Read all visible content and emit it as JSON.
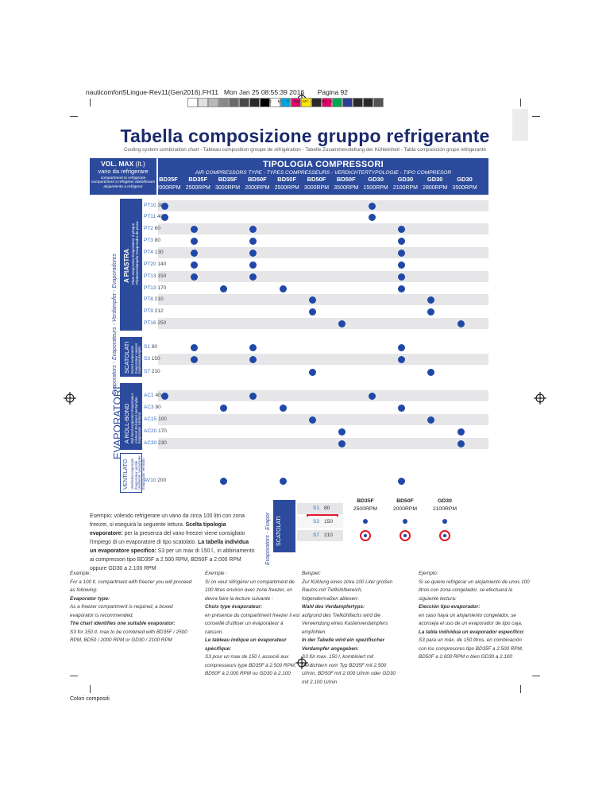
{
  "slug": {
    "file": "nauticomfort5Lingue-Rev11(Gen2016).FH11",
    "date": "Mon Jan 25 08:55:39 2016",
    "page": "Pagina 92"
  },
  "color_bar": [
    "#ffffff",
    "#e0e0e0",
    "#b8b8b8",
    "#8a8a8a",
    "#6a6a6a",
    "#4a4a4a",
    "#2a2a2a",
    "#000000",
    "#ffffff",
    "#00a6e0",
    "#e2006a",
    "#ffe600",
    "#2a2a2a",
    "#e2006a",
    "#00a650",
    "#2d3c95",
    "#2a2a2a",
    "#2a2a2a",
    "#555555"
  ],
  "color_bar_labels": [
    "C",
    "M",
    "Y",
    "CM",
    "MY",
    "CY",
    "CMY",
    "K"
  ],
  "title": "Tabella composizione gruppo refrigerante",
  "subtitle": "Cooling system combination chart - Tableau composition groupe de réfrigération - Tabelle Zusammenstellung der Kühleinheit - Tabla composición grupo refrigerante",
  "vol_header": {
    "title": "VOL. MAX",
    "unit": "(lt.)",
    "title2": "vano da refrigerare",
    "sub": "compartment to refrigerate compartiment à réfrigérer abkühlraum alojamiento a refrigerar"
  },
  "types_header": {
    "title": "TIPOLOGIA COMPRESSORI",
    "sub": "AIR COMPRESSORS TYPE - TYPES COMPRESSEURS - VERDICHTERTYPOLOGIE - TIPO COMPRESOR"
  },
  "compressors": [
    {
      "model": "BD35F",
      "rpm": "2000RPM"
    },
    {
      "model": "BD35F",
      "rpm": "2500RPM"
    },
    {
      "model": "BD35F",
      "rpm": "3000RPM"
    },
    {
      "model": "BD50F",
      "rpm": "2000RPM"
    },
    {
      "model": "BD50F",
      "rpm": "2500RPM"
    },
    {
      "model": "BD50F",
      "rpm": "3000RPM"
    },
    {
      "model": "BD50F",
      "rpm": "3500RPM"
    },
    {
      "model": "GD30",
      "rpm": "1500RPM"
    },
    {
      "model": "GD30",
      "rpm": "2100RPM"
    },
    {
      "model": "GD30",
      "rpm": "2800RPM"
    },
    {
      "model": "GD30",
      "rpm": "3500RPM"
    }
  ],
  "rows": [
    {
      "code": "PT10",
      "vol": "30",
      "dots": [
        0,
        7
      ]
    },
    {
      "code": "PT11",
      "vol": "40",
      "dots": [
        0,
        7
      ]
    },
    {
      "code": "PT2",
      "vol": "60",
      "dots": [
        1,
        3,
        8
      ]
    },
    {
      "code": "PT3",
      "vol": "80",
      "dots": [
        1,
        3,
        8
      ]
    },
    {
      "code": "PT4",
      "vol": "130",
      "dots": [
        1,
        3,
        8
      ]
    },
    {
      "code": "PT20",
      "vol": "140",
      "dots": [
        1,
        3,
        8
      ]
    },
    {
      "code": "PT13",
      "vol": "150",
      "dots": [
        1,
        3,
        8
      ]
    },
    {
      "code": "PT13",
      "vol": "170",
      "dots": [
        2,
        4,
        8
      ]
    },
    {
      "code": "PT8",
      "vol": "210",
      "dots": [
        5,
        9
      ]
    },
    {
      "code": "PT9",
      "vol": "212",
      "dots": [
        5,
        9
      ]
    },
    {
      "code": "PT16",
      "vol": "250",
      "dots": [
        6,
        10
      ]
    },
    {
      "code": "S1",
      "vol": "80",
      "dots": [
        1,
        3,
        8
      ]
    },
    {
      "code": "S3",
      "vol": "150",
      "dots": [
        1,
        3,
        8
      ]
    },
    {
      "code": "S7",
      "vol": "210",
      "dots": [
        5,
        9
      ]
    },
    {
      "code": "AC1",
      "vol": "40",
      "dots": [
        0,
        3,
        7
      ]
    },
    {
      "code": "AC3",
      "vol": "80",
      "dots": [
        2,
        4,
        8
      ]
    },
    {
      "code": "AC15",
      "vol": "100",
      "dots": [
        5,
        9
      ]
    },
    {
      "code": "AC20",
      "vol": "170",
      "dots": [
        6,
        10
      ]
    },
    {
      "code": "AC30",
      "vol": "230",
      "dots": [
        6,
        10
      ]
    },
    {
      "code": "AV10",
      "vol": "200",
      "dots": [
        2,
        4,
        8
      ]
    }
  ],
  "groups": {
    "piastra": {
      "label": "A PIASTRA",
      "sub": "Plate evaporator Évaporateur à plaque Plattenverdampfer Evaporador de placa"
    },
    "scatolati": {
      "label": "SCATOLATI",
      "sub": "Boxed evaporators Évaporateur caisson Kastenverdampfer Evaporadores tipo caja"
    },
    "roll": {
      "label": "A ROLL-BOND",
      "sub": "Roll-bond evaporator Évaporateur roll-bond Roll-Bond-Verdampfer Evaporador roll-bond"
    },
    "ventilato": {
      "label": "VENTILATO",
      "sub": "Ventilated evaporator Évaporateur ventilé Ventilierter Verdampfer Evaporador ventilado"
    }
  },
  "side_main": "EVAPORATORI",
  "side_sub": "Evaporators - Evaporateurs - Verdampfer - Evaporadores",
  "example_it": {
    "p1": "Esempio: volendo refrigerare un vano da circa 100 litri con zona freezer, si eseguirà la seguente lettura.",
    "b1": "Scelta tipologia evaporatore:",
    "p2": "per la presenza del vano freezer viene consigliato l'impiego di un evaporatore di tipo scatolato.",
    "b2": "La tabella individua un evaporatore specifico:",
    "p3": "S3 per un max di 150 l., in abbinamento ai compressori tipo BD35F a 2.500 RPM, BD50F a 2.000 RPM oppure GD30 a 2.100 RPM"
  },
  "mini": {
    "side": "Evaporators - Evapor",
    "box": "SCATOLATI",
    "rows": [
      {
        "code": "S1",
        "vol": "80"
      },
      {
        "code": "S3",
        "vol": "150"
      },
      {
        "code": "S7",
        "vol": "210"
      }
    ],
    "comps": [
      {
        "model": "BD35F",
        "rpm": "2500RPM"
      },
      {
        "model": "BD50F",
        "rpm": "2000RPM"
      },
      {
        "model": "GD30",
        "rpm": "2100RPM"
      }
    ]
  },
  "columns": [
    {
      "lines": [
        {
          "t": "Example:",
          "s": "i"
        },
        {
          "t": "For a 100 lt. compartment with freezer you will proceed as following:",
          "s": "i"
        },
        {
          "t": "Evaporator type:",
          "s": "bi"
        },
        {
          "t": "As a freezer compartment is required, a boxed evaporator is recommended.",
          "s": "i"
        },
        {
          "t": "The chart identifies one suitable evaporator:",
          "s": "bi"
        },
        {
          "t": "S3 for 150 lt. max to be combined with BD35F / 2500 RPM, BD50 / 2000 RPM or GD30 / 2100 RPM",
          "s": "i"
        }
      ]
    },
    {
      "lines": [
        {
          "t": "Exemple :",
          "s": "i"
        },
        {
          "t": "Si on veut réfrigérer un compartiment de 100 litres environ avec zone freezer, on devra faire la lecture suivante :",
          "s": "i"
        },
        {
          "t": "Choix type évaporateur:",
          "s": "bi"
        },
        {
          "t": "en présence du compartiment freezer il est conseillé d'utiliser un évaporateur à caisson.",
          "s": "i"
        },
        {
          "t": "Le tableau indique un évaporateur spécifique:",
          "s": "bi"
        },
        {
          "t": "S3 pour un max de 150 l, associé aux compresseurs type BD35F à 2.500 RPM, BD50F à 2.000 RPM ou GD30 à 2.100",
          "s": "i"
        }
      ]
    },
    {
      "lines": [
        {
          "t": "Beispiel:",
          "s": "i"
        },
        {
          "t": "Zur Kühlung eines zirka 100 Liter großen Raums mit Tiefkühlbereich, folgendermaßen ablesen:",
          "s": "i"
        },
        {
          "t": "Wahl des Verdampfertyps:",
          "s": "bi"
        },
        {
          "t": "aufgrund des Tiefkühlfachs wird die Verwendung eines Kastenverdampfers empfohlen.",
          "s": "i"
        },
        {
          "t": "In der Tabelle wird ein spezifischer Verdampfer angegeben:",
          "s": "bi"
        },
        {
          "t": "S3 für max. 150 l, kombiniert mit Verdichtern vom Typ BD35F mit 2.500 U/min, BD50F mit 2.000 U/min oder GD30 mit 2.100 U/min",
          "s": "i"
        }
      ]
    },
    {
      "lines": [
        {
          "t": "Ejemplo:",
          "s": "i"
        },
        {
          "t": "Si se quiere refrigerar un alojamiento de unos 100 litros con zona congelador, se efectuará la siguiente lectura:",
          "s": "i"
        },
        {
          "t": "Elección tipo evaporador:",
          "s": "bi"
        },
        {
          "t": "en caso haya un alojamiento congelador, se aconseja el uso de un evaporador de tipo caja.",
          "s": "i"
        },
        {
          "t": "La tabla individua un evaporador específico:",
          "s": "bi"
        },
        {
          "t": "S3 para un máx. de 150 litros, en combinación con los compresores tipo BD35F a 2.500 RPM, BD50F a 2.000 RPM o bien GD30 a 2.100",
          "s": "i"
        }
      ]
    }
  ],
  "footer": "Colori compositi"
}
